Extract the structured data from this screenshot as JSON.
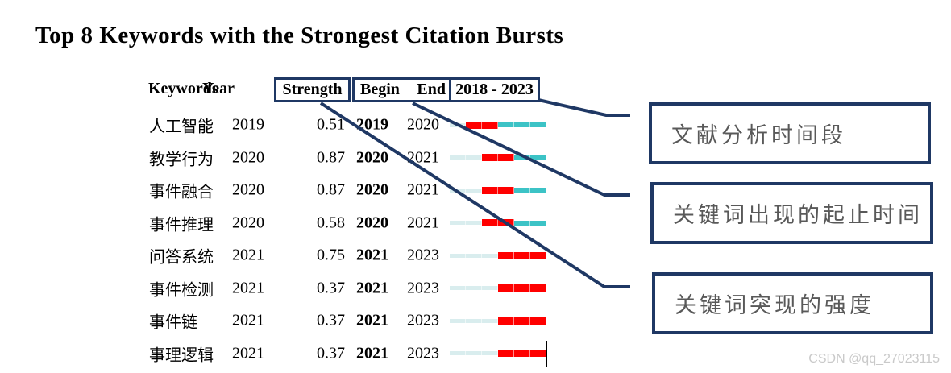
{
  "title": "Top 8 Keywords with the Strongest Citation Bursts",
  "colors": {
    "navy": "#1f3864",
    "burst_red": "#ff0000",
    "post_teal": "#3cc3c6",
    "pre_pale": "#d9edee",
    "callout_text": "#595959",
    "watermark_gray": "#c9c9c9"
  },
  "table": {
    "headers": {
      "keywords": "Keywords",
      "year": "Year",
      "strength": "Strength",
      "begin": "Begin",
      "end": "End",
      "period": "2018 - 2023"
    },
    "rows": [
      {
        "keyword": "人工智能",
        "year": "2019",
        "strength": "0.51",
        "begin": "2019",
        "end": "2020",
        "cursor": false
      },
      {
        "keyword": "教学行为",
        "year": "2020",
        "strength": "0.87",
        "begin": "2020",
        "end": "2021",
        "cursor": false
      },
      {
        "keyword": "事件融合",
        "year": "2020",
        "strength": "0.87",
        "begin": "2020",
        "end": "2021",
        "cursor": false
      },
      {
        "keyword": "事件推理",
        "year": "2020",
        "strength": "0.58",
        "begin": "2020",
        "end": "2021",
        "cursor": false
      },
      {
        "keyword": "问答系统",
        "year": "2021",
        "strength": "0.75",
        "begin": "2021",
        "end": "2023",
        "cursor": false
      },
      {
        "keyword": "事件检测",
        "year": "2021",
        "strength": "0.37",
        "begin": "2021",
        "end": "2023",
        "cursor": false
      },
      {
        "keyword": "事件链",
        "year": "2021",
        "strength": "0.37",
        "begin": "2021",
        "end": "2023",
        "cursor": false
      },
      {
        "keyword": "事理逻辑",
        "year": "2021",
        "strength": "0.37",
        "begin": "2021",
        "end": "2023",
        "cursor": true
      }
    ]
  },
  "chart_data": {
    "type": "table",
    "title": "Top 8 Keywords with the Strongest Citation Bursts",
    "columns": [
      "Keywords",
      "Year",
      "Strength",
      "Begin",
      "End",
      "2018 - 2023"
    ],
    "timeline": {
      "start": 2018,
      "end": 2023
    },
    "rows": [
      {
        "keyword": "人工智能",
        "year": 2019,
        "strength": 0.51,
        "begin": 2019,
        "end": 2020
      },
      {
        "keyword": "教学行为",
        "year": 2020,
        "strength": 0.87,
        "begin": 2020,
        "end": 2021
      },
      {
        "keyword": "事件融合",
        "year": 2020,
        "strength": 0.87,
        "begin": 2020,
        "end": 2021
      },
      {
        "keyword": "事件推理",
        "year": 2020,
        "strength": 0.58,
        "begin": 2020,
        "end": 2021
      },
      {
        "keyword": "问答系统",
        "year": 2021,
        "strength": 0.75,
        "begin": 2021,
        "end": 2023
      },
      {
        "keyword": "事件检测",
        "year": 2021,
        "strength": 0.37,
        "begin": 2021,
        "end": 2023
      },
      {
        "keyword": "事件链",
        "year": 2021,
        "strength": 0.37,
        "begin": 2021,
        "end": 2023
      },
      {
        "keyword": "事理逻辑",
        "year": 2021,
        "strength": 0.37,
        "begin": 2021,
        "end": 2023
      }
    ],
    "bar_encoding": {
      "pre_burst_color": "#d9edee",
      "burst_color": "#ff0000",
      "post_burst_color": "#3cc3c6",
      "note": "red segment spans begin..end years inclusive on the 2018-2023 timeline"
    }
  },
  "annotations": {
    "callouts": [
      {
        "label": "文献分析时间段"
      },
      {
        "label": "关键词出现的起止时间"
      },
      {
        "label": "关键词突现的强度"
      }
    ]
  },
  "watermark": "CSDN @qq_27023115"
}
